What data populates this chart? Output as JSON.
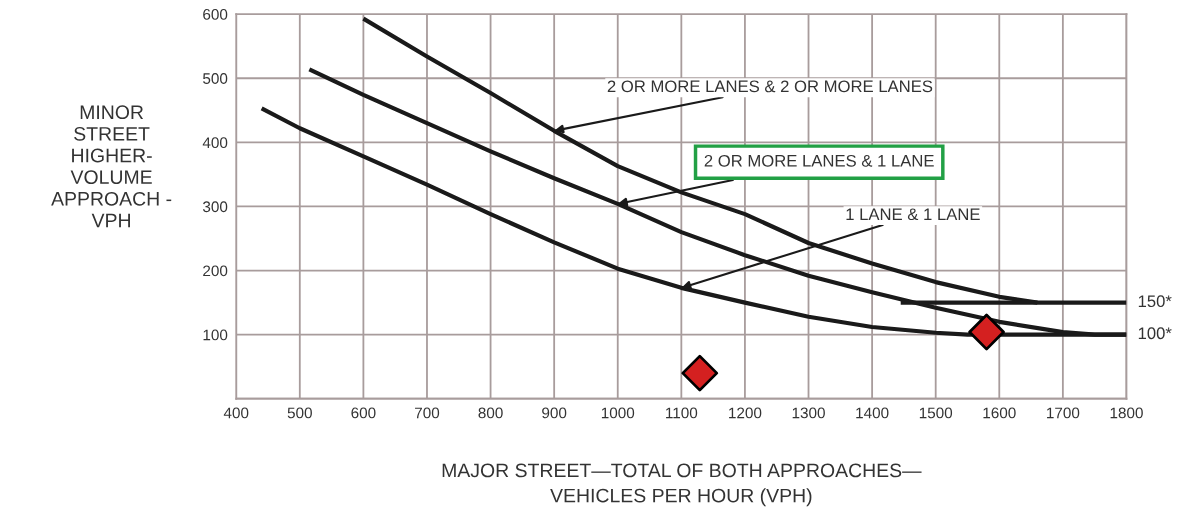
{
  "chart_data": {
    "type": "line",
    "xlabel": "MAJOR STREET—TOTAL OF BOTH APPROACHES—\nVEHICLES PER HOUR (VPH)",
    "ylabel": "MINOR\nSTREET\nHIGHER-\nVOLUME\nAPPROACH -\nVPH",
    "xlim": [
      400,
      1800
    ],
    "xticks": [
      400,
      500,
      600,
      700,
      800,
      900,
      1000,
      1100,
      1200,
      1300,
      1400,
      1500,
      1600,
      1700,
      1800
    ],
    "ylim": [
      0,
      600
    ],
    "yticks": [
      {
        "value": 0,
        "label": null
      },
      100,
      200,
      300,
      400,
      500,
      600
    ],
    "grid": true,
    "legend": false,
    "series": [
      {
        "color": "#1a1a1a",
        "x": [
          600,
          700,
          800,
          900,
          1000,
          1100,
          1200,
          1300,
          1400,
          1500,
          1600,
          1660
        ],
        "values": [
          593,
          534,
          477,
          418,
          363,
          322,
          288,
          243,
          211,
          182,
          159,
          150
        ]
      },
      {
        "color": "#1a1a1a",
        "x": [
          515,
          600,
          700,
          800,
          900,
          1000,
          1100,
          1200,
          1300,
          1400,
          1500,
          1600,
          1700,
          1750,
          1800
        ],
        "values": [
          514,
          474,
          430,
          386,
          344,
          304,
          260,
          224,
          192,
          166,
          142,
          120,
          104,
          100,
          100
        ]
      },
      {
        "color": "#1a1a1a",
        "x": [
          440,
          500,
          600,
          700,
          800,
          900,
          1000,
          1100,
          1200,
          1300,
          1400,
          1500,
          1550,
          1800
        ],
        "values": [
          453,
          422,
          378,
          334,
          288,
          244,
          203,
          173,
          150,
          128,
          112,
          103,
          100,
          100
        ]
      },
      {
        "color": "#1a1a1a",
        "x": [
          1445,
          1800
        ],
        "values": [
          150,
          150
        ]
      },
      {
        "type": "scatter",
        "marker": "diamond",
        "color": "#d42020",
        "x": [
          1129,
          1580
        ],
        "values": [
          40,
          104
        ]
      }
    ],
    "annotations": [
      {
        "text": "2 OR MORE LANES & 2 OR MORE LANES",
        "x": 900,
        "y": 418
      },
      {
        "text": "2 OR MORE LANES & 1 LANE",
        "x": 1000,
        "y": 304
      },
      {
        "text": "1 LANE & 1 LANE",
        "x": 1100,
        "y": 173
      },
      {
        "text": "150*",
        "x": 1800,
        "y": 150
      },
      {
        "text": "100*",
        "x": 1800,
        "y": 100
      }
    ]
  }
}
